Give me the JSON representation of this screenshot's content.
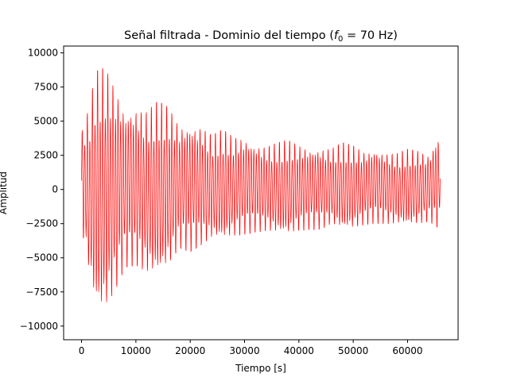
{
  "chart_data": {
    "type": "line",
    "title_prefix": "Señal filtrada - Dominio del tiempo (",
    "title_f": "f",
    "title_sub": "0",
    "title_suffix": " = 70 Hz)",
    "xlabel": "Tiempo [s]",
    "ylabel": "Amplitud",
    "xlim": [
      -3300,
      69300
    ],
    "ylim": [
      -11000,
      10500
    ],
    "xticks": [
      0,
      10000,
      20000,
      30000,
      40000,
      50000,
      60000
    ],
    "xtick_labels": [
      "0",
      "10000",
      "20000",
      "30000",
      "40000",
      "50000",
      "60000"
    ],
    "yticks": [
      10000,
      7500,
      5000,
      2500,
      0,
      -2500,
      -5000,
      -7500,
      -10000
    ],
    "ytick_labels": [
      "10000",
      "7500",
      "5000",
      "2500",
      "0",
      "−2500",
      "−5000",
      "−7500",
      "−10000"
    ],
    "grid": false,
    "series": [
      {
        "color": "#ff0000",
        "x_range": [
          0,
          66000
        ],
        "envelope": {
          "x": [
            0,
            1500,
            2500,
            3500,
            4500,
            6000,
            8000,
            10000,
            12000,
            14000,
            16000,
            18000,
            20000,
            22000,
            24000,
            26000,
            28000,
            30000,
            32000,
            34000,
            36000,
            38000,
            40000,
            42000,
            44000,
            46000,
            48000,
            50000,
            52000,
            54000,
            56000,
            58000,
            60000,
            62000,
            64000,
            66000
          ],
          "upper": [
            4500,
            6500,
            9000,
            9400,
            9300,
            8200,
            6400,
            6500,
            6100,
            6800,
            6400,
            5100,
            5200,
            5000,
            4200,
            4600,
            4100,
            4100,
            3600,
            3400,
            3600,
            3800,
            3500,
            3300,
            3300,
            3200,
            3600,
            3400,
            3000,
            3200,
            2900,
            2800,
            3100,
            3000,
            2700,
            4700
          ],
          "lower": [
            -3200,
            -7000,
            -9500,
            -10000,
            -9600,
            -8200,
            -6000,
            -5900,
            -6700,
            -7000,
            -6200,
            -4600,
            -4800,
            -4400,
            -4000,
            -4200,
            -3800,
            -3500,
            -3300,
            -3300,
            -3600,
            -3700,
            -3300,
            -3100,
            -3100,
            -2800,
            -3300,
            -3200,
            -2800,
            -2600,
            -2700,
            -2800,
            -3000,
            -2800,
            -2500,
            -3100
          ]
        },
        "cycles": 140
      }
    ]
  }
}
